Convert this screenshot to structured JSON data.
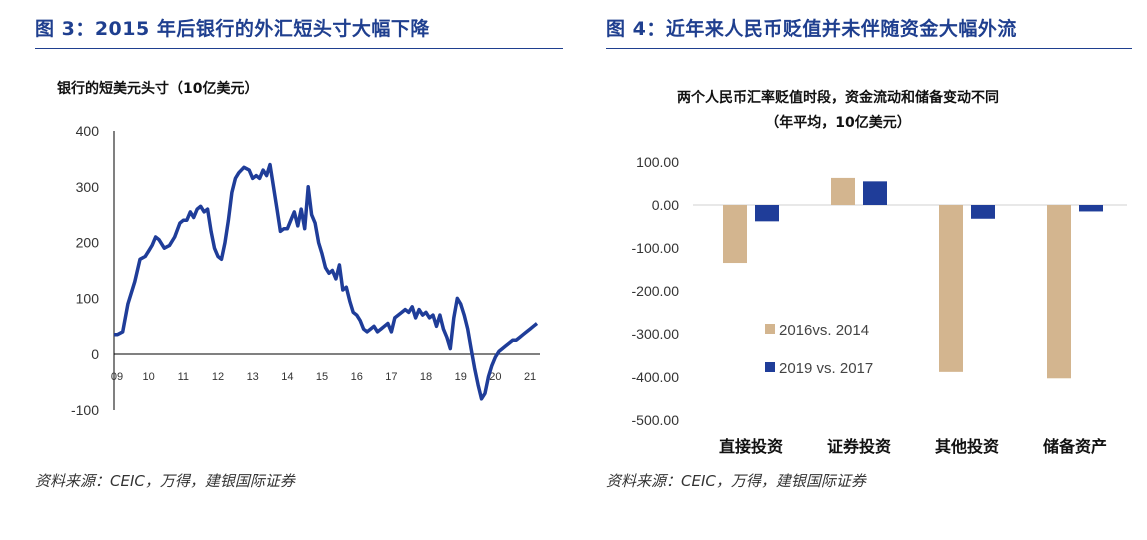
{
  "fig3": {
    "title": "图 3：2015 年后银行的外汇短头寸大幅下降",
    "source": "资料来源：CEIC，万得，建银国际证券"
  },
  "fig4": {
    "title": "图 4：近年来人民币贬值并未伴随资金大幅外流",
    "source": "资料来源：CEIC，万得，建银国际证券"
  },
  "chart_data": [
    {
      "type": "line",
      "title": "银行的短美元头寸（10亿美元）",
      "ylim": [
        -100,
        400
      ],
      "yticks": [
        "400",
        "300",
        "200",
        "100",
        "0",
        "-100"
      ],
      "xticks": [
        "09",
        "10",
        "11",
        "12",
        "13",
        "14",
        "15",
        "16",
        "17",
        "18",
        "19",
        "20",
        "21"
      ],
      "color": "#1f3d99",
      "x": [
        9.0,
        9.1,
        9.25,
        9.4,
        9.6,
        9.75,
        9.9,
        10.0,
        10.1,
        10.2,
        10.3,
        10.45,
        10.6,
        10.75,
        10.9,
        11.0,
        11.1,
        11.2,
        11.3,
        11.4,
        11.5,
        11.6,
        11.7,
        11.8,
        11.9,
        12.0,
        12.1,
        12.2,
        12.3,
        12.4,
        12.5,
        12.6,
        12.75,
        12.9,
        13.0,
        13.1,
        13.2,
        13.3,
        13.4,
        13.5,
        13.6,
        13.7,
        13.8,
        13.9,
        14.0,
        14.1,
        14.2,
        14.3,
        14.4,
        14.5,
        14.6,
        14.7,
        14.8,
        14.9,
        15.0,
        15.1,
        15.2,
        15.3,
        15.4,
        15.5,
        15.6,
        15.7,
        15.8,
        15.9,
        16.0,
        16.1,
        16.2,
        16.3,
        16.4,
        16.5,
        16.6,
        16.7,
        16.8,
        16.9,
        17.0,
        17.1,
        17.2,
        17.3,
        17.4,
        17.5,
        17.6,
        17.7,
        17.8,
        17.9,
        18.0,
        18.1,
        18.2,
        18.3,
        18.4,
        18.5,
        18.6,
        18.7,
        18.8,
        18.9,
        19.0,
        19.1,
        19.2,
        19.3,
        19.4,
        19.5,
        19.6,
        19.7,
        19.8,
        19.9,
        20.0,
        20.1,
        20.2,
        20.3,
        20.4,
        20.5,
        20.6,
        20.7,
        20.8,
        20.9,
        21.0,
        21.1,
        21.2
      ],
      "y": [
        35,
        35,
        40,
        90,
        130,
        170,
        175,
        185,
        195,
        210,
        205,
        190,
        195,
        210,
        235,
        240,
        240,
        255,
        245,
        260,
        265,
        255,
        260,
        220,
        190,
        175,
        170,
        200,
        240,
        290,
        315,
        325,
        335,
        330,
        315,
        320,
        315,
        330,
        320,
        340,
        300,
        260,
        220,
        225,
        225,
        240,
        255,
        230,
        260,
        225,
        300,
        250,
        235,
        200,
        180,
        155,
        145,
        150,
        135,
        160,
        115,
        120,
        95,
        75,
        70,
        60,
        45,
        40,
        45,
        50,
        40,
        45,
        50,
        55,
        40,
        65,
        70,
        75,
        80,
        75,
        85,
        65,
        80,
        70,
        75,
        65,
        70,
        50,
        70,
        45,
        30,
        10,
        65,
        100,
        90,
        70,
        45,
        10,
        -25,
        -55,
        -80,
        -70,
        -40,
        -20,
        -5,
        5,
        10,
        15,
        20,
        25,
        25,
        30,
        35,
        40,
        45,
        50,
        55
      ],
      "xlim": [
        9.0,
        21.2
      ]
    },
    {
      "type": "bar",
      "title": "两个人民币汇率贬值时段，资金流动和储备变动不同",
      "subtitle": "（年平均，10亿美元）",
      "categories": [
        "直接投资",
        "证券投资",
        "其他投资",
        "储备资产"
      ],
      "series": [
        {
          "name": "2016vs. 2014",
          "color": "#d3b58f",
          "values": [
            -135,
            63,
            -388,
            -403
          ]
        },
        {
          "name": "2019 vs. 2017",
          "color": "#1f3d99",
          "values": [
            -38,
            55,
            -32,
            -15
          ]
        }
      ],
      "ylim": [
        -500,
        100
      ],
      "yticks": [
        "100.00",
        "0.00",
        "-100.00",
        "-200.00",
        "-300.00",
        "-400.00",
        "-500.00"
      ],
      "legend_position": "inside-left"
    }
  ]
}
